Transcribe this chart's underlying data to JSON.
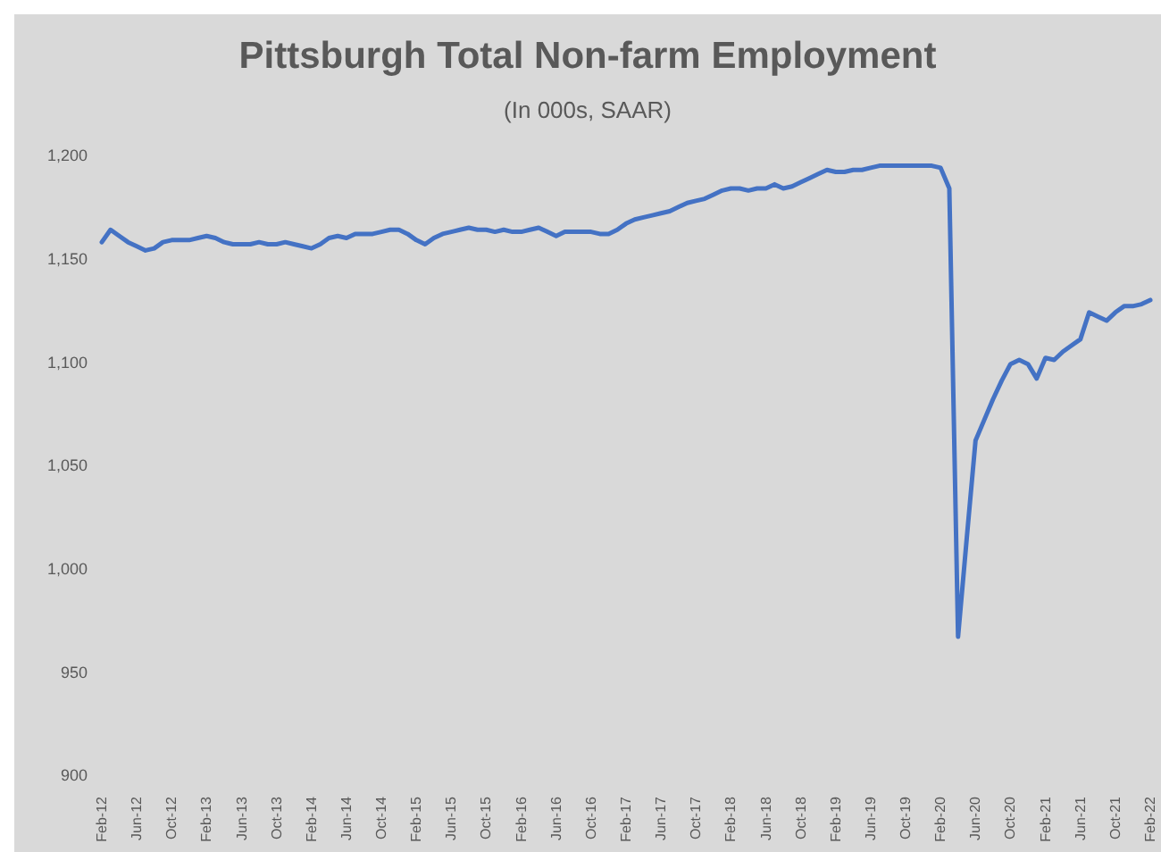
{
  "chart_data": {
    "type": "line",
    "title": "Pittsburgh Total Non-farm Employment",
    "subtitle": "(In 000s, SAAR)",
    "categories": [
      "Feb-12",
      null,
      null,
      null,
      "Jun-12",
      null,
      null,
      null,
      "Oct-12",
      null,
      null,
      null,
      "Feb-13",
      null,
      null,
      null,
      "Jun-13",
      null,
      null,
      null,
      "Oct-13",
      null,
      null,
      null,
      "Feb-14",
      null,
      null,
      null,
      "Jun-14",
      null,
      null,
      null,
      "Oct-14",
      null,
      null,
      null,
      "Feb-15",
      null,
      null,
      null,
      "Jun-15",
      null,
      null,
      null,
      "Oct-15",
      null,
      null,
      null,
      "Feb-16",
      null,
      null,
      null,
      "Jun-16",
      null,
      null,
      null,
      "Oct-16",
      null,
      null,
      null,
      "Feb-17",
      null,
      null,
      null,
      "Jun-17",
      null,
      null,
      null,
      "Oct-17",
      null,
      null,
      null,
      "Feb-18",
      null,
      null,
      null,
      "Jun-18",
      null,
      null,
      null,
      "Oct-18",
      null,
      null,
      null,
      "Feb-19",
      null,
      null,
      null,
      "Jun-19",
      null,
      null,
      null,
      "Oct-19",
      null,
      null,
      null,
      "Feb-20",
      null,
      null,
      null,
      "Jun-20",
      null,
      null,
      null,
      "Oct-20",
      null,
      null,
      null,
      "Feb-21",
      null,
      null,
      null,
      "Jun-21",
      null,
      null,
      null,
      "Oct-21",
      null,
      null,
      null,
      "Feb-22"
    ],
    "series": [
      {
        "color": "#4472c4",
        "values": [
          1158,
          1164,
          1161,
          1158,
          1156,
          1154,
          1155,
          1158,
          1159,
          1159,
          1159,
          1160,
          1161,
          1160,
          1158,
          1157,
          1157,
          1157,
          1158,
          1157,
          1157,
          1158,
          1157,
          1156,
          1155,
          1157,
          1160,
          1161,
          1160,
          1162,
          1162,
          1162,
          1163,
          1164,
          1164,
          1162,
          1159,
          1157,
          1160,
          1162,
          1163,
          1164,
          1165,
          1164,
          1164,
          1163,
          1164,
          1163,
          1163,
          1164,
          1165,
          1163,
          1161,
          1163,
          1163,
          1163,
          1163,
          1162,
          1162,
          1164,
          1167,
          1169,
          1170,
          1171,
          1172,
          1173,
          1175,
          1177,
          1178,
          1179,
          1181,
          1183,
          1184,
          1184,
          1183,
          1184,
          1184,
          1186,
          1184,
          1185,
          1187,
          1189,
          1191,
          1193,
          1192,
          1192,
          1193,
          1193,
          1194,
          1195,
          1195,
          1195,
          1195,
          1195,
          1195,
          1195,
          1194,
          1184,
          967,
          1015,
          1062,
          1072,
          1082,
          1091,
          1099,
          1101,
          1099,
          1092,
          1102,
          1101,
          1105,
          1108,
          1111,
          1124,
          1122,
          1120,
          1124,
          1127,
          1127,
          1128,
          1130
        ]
      }
    ],
    "ylim": [
      900,
      1200
    ],
    "yticks": [
      {
        "value": 900,
        "label": "900"
      },
      {
        "value": 950,
        "label": "950"
      },
      {
        "value": 1000,
        "label": "1,000"
      },
      {
        "value": 1050,
        "label": "1,050"
      },
      {
        "value": 1100,
        "label": "1,100"
      },
      {
        "value": 1150,
        "label": "1,150"
      },
      {
        "value": 1200,
        "label": "1,200"
      }
    ]
  }
}
